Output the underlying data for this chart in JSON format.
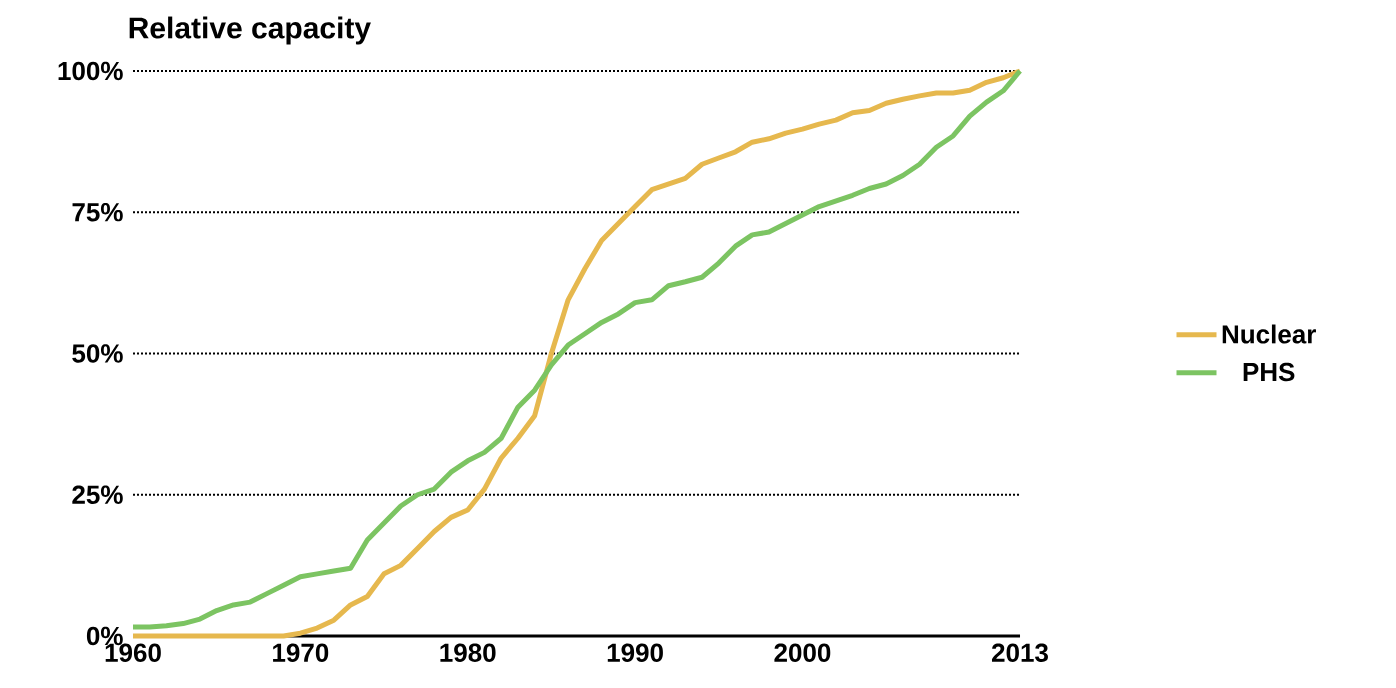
{
  "chart_data": {
    "type": "line",
    "title": "Relative capacity",
    "x": [
      1960,
      1961,
      1962,
      1963,
      1964,
      1965,
      1966,
      1967,
      1968,
      1969,
      1970,
      1971,
      1972,
      1973,
      1974,
      1975,
      1976,
      1977,
      1978,
      1979,
      1980,
      1981,
      1982,
      1983,
      1984,
      1985,
      1986,
      1987,
      1988,
      1989,
      1990,
      1991,
      1992,
      1993,
      1994,
      1995,
      1996,
      1997,
      1998,
      1999,
      2000,
      2001,
      2002,
      2003,
      2004,
      2005,
      2006,
      2007,
      2008,
      2009,
      2010,
      2011,
      2012,
      2013
    ],
    "series": [
      {
        "name": "Nuclear",
        "color": "#e6b84e",
        "values": [
          0,
          0,
          0,
          0,
          0,
          0,
          0,
          0,
          0,
          0,
          0.5,
          1.4,
          2.8,
          5.5,
          7,
          11,
          12.5,
          15.5,
          18.5,
          21,
          22.3,
          26,
          31.5,
          35,
          39,
          50,
          59.5,
          65,
          70,
          73,
          76,
          79,
          80,
          81,
          83.5,
          84.6,
          85.7,
          87.4,
          88,
          89,
          89.7,
          90.6,
          91.3,
          92.6,
          93,
          94.3,
          95,
          95.6,
          96.1,
          96.1,
          96.6,
          98,
          98.8,
          100
        ]
      },
      {
        "name": "PHS",
        "color": "#7cc462",
        "values": [
          1.6,
          1.6,
          1.8,
          2.2,
          3,
          4.5,
          5.5,
          6,
          7.5,
          9,
          10.5,
          11,
          11.5,
          12,
          17,
          20,
          23,
          25,
          26,
          29,
          31,
          32.5,
          35,
          40.5,
          43.5,
          48,
          51.5,
          53.5,
          55.5,
          57,
          59,
          59.5,
          62,
          62.7,
          63.5,
          66,
          69,
          71,
          71.5,
          73,
          74.5,
          76,
          77,
          78,
          79.2,
          80,
          81.5,
          83.5,
          86.5,
          88.5,
          92,
          94.5,
          96.5,
          100
        ]
      }
    ],
    "xlim": [
      1960,
      2013
    ],
    "xticks": [
      1960,
      1970,
      1980,
      1990,
      2000,
      2013
    ],
    "ylim": [
      0,
      100
    ],
    "yticks": [
      {
        "value": 0,
        "label": "0%"
      },
      {
        "value": 25,
        "label": "25%"
      },
      {
        "value": 50,
        "label": "50%"
      },
      {
        "value": 75,
        "label": "75%"
      },
      {
        "value": 100,
        "label": "100%"
      }
    ],
    "grid": "y",
    "legend": "right",
    "marker": "none",
    "line_style": "solid"
  }
}
